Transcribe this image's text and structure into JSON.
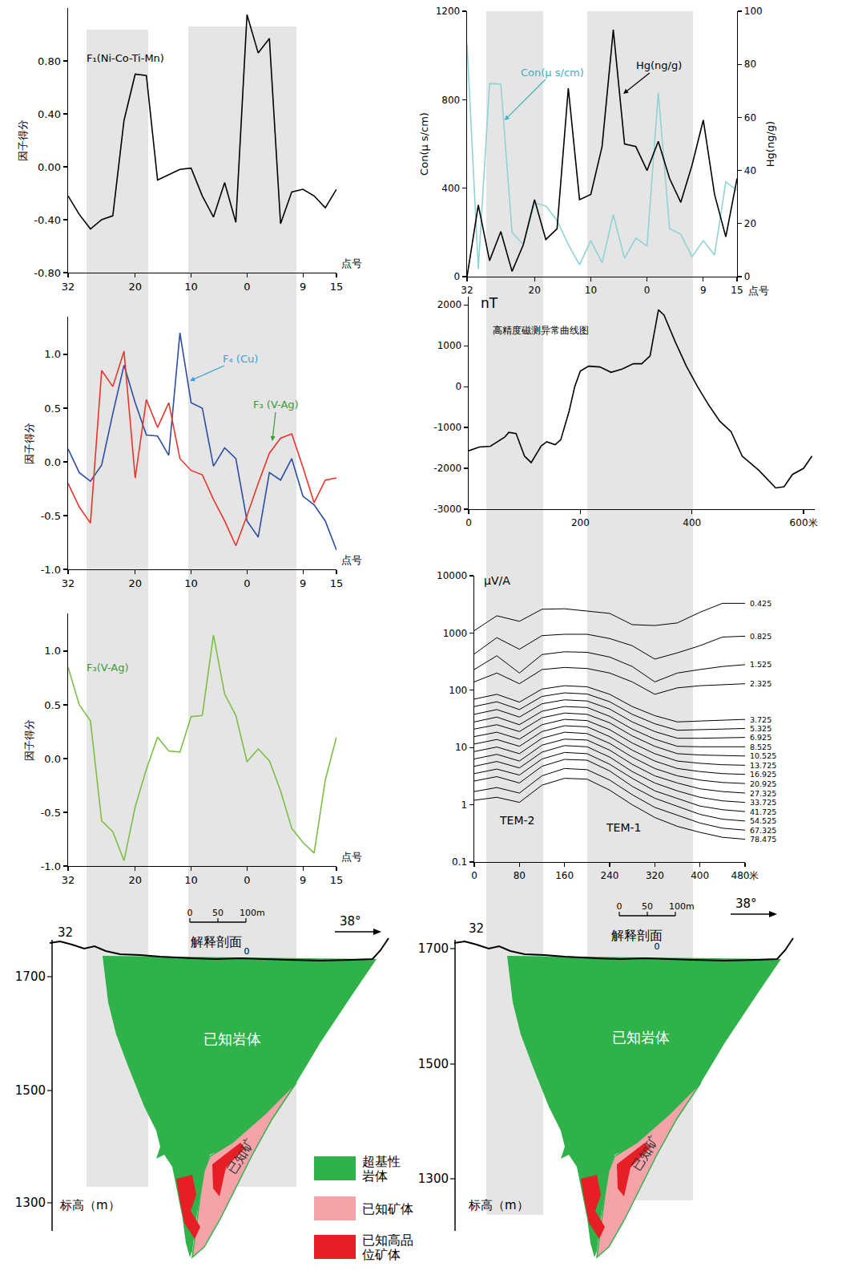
{
  "chart_data": [
    {
      "type": "line",
      "y_title": "因子得分",
      "x_title": "点号",
      "grid": false,
      "categories": [
        "32",
        null,
        null,
        null,
        null,
        null,
        "20",
        null,
        null,
        null,
        null,
        "10",
        null,
        null,
        null,
        null,
        "0",
        null,
        null,
        null,
        null,
        "9",
        null,
        null,
        "15"
      ],
      "ylim": [
        -0.8,
        1.2
      ],
      "yticks": [
        {
          "value": -0.8,
          "label": "-0.80"
        },
        {
          "value": -0.4,
          "label": "-0.40"
        },
        {
          "value": 0,
          "label": "0.00"
        },
        {
          "value": 0.4,
          "label": "0.40"
        },
        {
          "value": 0.8,
          "label": "0.80"
        }
      ],
      "series": [
        {
          "name": "F₁(Ni-Co-Ti-Mn)",
          "color": "#000000",
          "values": [
            -0.22,
            -0.36,
            -0.47,
            -0.4,
            -0.37,
            0.35,
            0.7,
            0.69,
            -0.1,
            -0.06,
            -0.02,
            -0.01,
            -0.22,
            -0.38,
            -0.12,
            -0.42,
            1.15,
            0.86,
            0.97,
            -0.43,
            -0.19,
            -0.17,
            -0.22,
            -0.31,
            -0.17
          ]
        }
      ]
    },
    {
      "type": "line",
      "y_title": "因子得分",
      "x_title": "点号",
      "grid": false,
      "categories": [
        "32",
        null,
        null,
        null,
        null,
        null,
        "20",
        null,
        null,
        null,
        null,
        "10",
        null,
        null,
        null,
        null,
        "0",
        null,
        null,
        null,
        null,
        "9",
        null,
        null,
        "15"
      ],
      "ylim": [
        -1.0,
        1.35
      ],
      "yticks": [
        {
          "value": -1,
          "label": "-1.0"
        },
        {
          "value": -0.5,
          "label": "-0.5"
        },
        {
          "value": 0,
          "label": "0.0"
        },
        {
          "value": 0.5,
          "label": "0.5"
        },
        {
          "value": 1,
          "label": "1.0"
        }
      ],
      "series": [
        {
          "name": "F₄ (Cu)",
          "color": "#2b4ea2",
          "values": [
            0.12,
            -0.1,
            -0.18,
            -0.03,
            0.45,
            0.9,
            0.55,
            0.25,
            0.24,
            0.06,
            1.2,
            0.55,
            0.5,
            -0.04,
            0.13,
            0.03,
            -0.55,
            -0.7,
            -0.1,
            -0.17,
            0.03,
            -0.32,
            -0.4,
            -0.55,
            -0.82
          ]
        },
        {
          "name": "F₃ (V-Ag)",
          "color": "#e8352b",
          "values": [
            -0.2,
            -0.42,
            -0.57,
            0.85,
            0.7,
            1.03,
            -0.15,
            0.58,
            0.32,
            0.55,
            0.03,
            -0.08,
            -0.12,
            -0.35,
            -0.55,
            -0.78,
            -0.5,
            -0.2,
            0.08,
            0.22,
            0.26,
            -0.05,
            -0.38,
            -0.17,
            -0.15
          ]
        }
      ]
    },
    {
      "type": "line",
      "y_title": "因子得分",
      "x_title": "点号",
      "grid": false,
      "categories": [
        "32",
        null,
        null,
        null,
        null,
        null,
        "20",
        null,
        null,
        null,
        null,
        "10",
        null,
        null,
        null,
        null,
        "0",
        null,
        null,
        null,
        null,
        "9",
        null,
        null,
        "15"
      ],
      "ylim": [
        -1.0,
        1.35
      ],
      "yticks": [
        {
          "value": -1,
          "label": "-1.0"
        },
        {
          "value": -0.5,
          "label": "-0.5"
        },
        {
          "value": 0,
          "label": "0.0"
        },
        {
          "value": 0.5,
          "label": "0.5"
        },
        {
          "value": 1,
          "label": "1.0"
        }
      ],
      "series": [
        {
          "name": "F₃(V-Ag)",
          "color": "#7cbf45",
          "values": [
            0.85,
            0.5,
            0.35,
            -0.58,
            -0.68,
            -0.95,
            -0.45,
            -0.1,
            0.2,
            0.07,
            0.06,
            0.39,
            0.4,
            1.15,
            0.6,
            0.4,
            -0.03,
            0.09,
            -0.02,
            -0.3,
            -0.65,
            -0.78,
            -0.88,
            -0.2,
            0.2
          ]
        }
      ]
    },
    {
      "type": "line",
      "y_title": "Con(μ s/cm)",
      "y2_title": "Hg(ng/g)",
      "x_title": "点号",
      "grid": false,
      "categories": [
        "32",
        null,
        null,
        null,
        null,
        null,
        "20",
        null,
        null,
        null,
        null,
        "10",
        null,
        null,
        null,
        null,
        "0",
        null,
        null,
        null,
        null,
        "9",
        null,
        null,
        "15"
      ],
      "ylim": [
        0,
        1200
      ],
      "yticks": [
        0,
        400,
        800,
        1200
      ],
      "y2lim": [
        0,
        100
      ],
      "y2ticks": [
        0,
        20,
        40,
        60,
        80,
        100
      ],
      "series": [
        {
          "name": "Con(μ s/cm)",
          "color": "#8fd3d6",
          "values": [
            1050,
            35,
            873,
            870,
            200,
            145,
            333,
            320,
            254,
            145,
            54,
            163,
            62,
            280,
            83,
            174,
            138,
            833,
            217,
            192,
            90,
            163,
            98,
            428,
            391
          ]
        },
        {
          "name": "Hg(ng/g)",
          "color": "#000000",
          "axis": "y2",
          "values": [
            0,
            27,
            6,
            17,
            2,
            12,
            29,
            14,
            18,
            71,
            29,
            31,
            49,
            93,
            50,
            49,
            40,
            51,
            37,
            28,
            42,
            59,
            31,
            15,
            37
          ]
        }
      ]
    },
    {
      "type": "line",
      "title": "高精度磁测异常曲线图",
      "y_title": "nT",
      "grid": false,
      "x": [
        0,
        19,
        39,
        65,
        72,
        85,
        100,
        112,
        130,
        140,
        155,
        165,
        180,
        190,
        200,
        215,
        235,
        255,
        275,
        295,
        310,
        325,
        340,
        350,
        370,
        390,
        410,
        430,
        450,
        470,
        490,
        520,
        550,
        565,
        580,
        600,
        615
      ],
      "xlim": [
        0,
        620
      ],
      "xticks": [
        0,
        200,
        400,
        {
          "value": 600,
          "label": "600米"
        }
      ],
      "ylim": [
        -3000,
        2200
      ],
      "yticks": [
        -3000,
        -2000,
        -1000,
        0,
        1000,
        2000
      ],
      "series": [
        {
          "color": "#000000",
          "values": [
            -1570,
            -1480,
            -1460,
            -1230,
            -1120,
            -1150,
            -1700,
            -1860,
            -1450,
            -1350,
            -1420,
            -1300,
            -600,
            0,
            380,
            500,
            480,
            350,
            430,
            560,
            560,
            750,
            1880,
            1750,
            1100,
            500,
            0,
            -450,
            -850,
            -1100,
            -1700,
            -2050,
            -2480,
            -2450,
            -2150,
            -2000,
            -1700
          ]
        }
      ]
    },
    {
      "type": "line",
      "y_title": "μV/A",
      "log": "y",
      "grid": false,
      "annotations": [
        "TEM-2",
        "TEM-1"
      ],
      "x": [
        0,
        40,
        80,
        120,
        160,
        200,
        240,
        280,
        320,
        360,
        400,
        440,
        480
      ],
      "xlim": [
        0,
        480
      ],
      "xticks": [
        0,
        80,
        160,
        240,
        320,
        400,
        {
          "value": 480,
          "label": "480米"
        }
      ],
      "ylim": [
        0.1,
        10000
      ],
      "yticks": [
        0.1,
        1,
        10,
        100,
        1000,
        10000
      ],
      "series": [
        {
          "name": "0.425",
          "color": "#000000",
          "values": [
            1100,
            2000,
            1600,
            2600,
            2650,
            2400,
            2200,
            1400,
            1350,
            1500,
            2300,
            3300,
            3300
          ]
        },
        {
          "name": "0.825",
          "color": "#000000",
          "values": [
            430,
            830,
            520,
            900,
            950,
            950,
            800,
            600,
            350,
            450,
            600,
            850,
            880
          ]
        },
        {
          "name": "1.525",
          "color": "#000000",
          "values": [
            230,
            400,
            200,
            420,
            470,
            460,
            380,
            260,
            140,
            200,
            230,
            260,
            280
          ]
        },
        {
          "name": "2.325",
          "color": "#000000",
          "values": [
            140,
            200,
            130,
            230,
            250,
            240,
            200,
            140,
            85,
            110,
            120,
            125,
            130
          ]
        },
        {
          "name": "3.725",
          "color": "#000000",
          "values": [
            70,
            85,
            62,
            105,
            120,
            115,
            85,
            52,
            36,
            28,
            29,
            30,
            31
          ]
        },
        {
          "name": "5.325",
          "color": "#000000",
          "values": [
            52,
            63,
            46,
            78,
            90,
            86,
            63,
            38,
            26,
            20,
            20.5,
            21,
            21.5
          ]
        },
        {
          "name": "6.925",
          "color": "#000000",
          "values": [
            38,
            46,
            34,
            58,
            68,
            65,
            47,
            28,
            19,
            14.5,
            14.5,
            14.8,
            15
          ]
        },
        {
          "name": "8.525",
          "color": "#000000",
          "values": [
            28,
            34,
            25,
            43,
            52,
            50,
            35,
            21,
            14,
            10.5,
            10.3,
            10.3,
            10.3
          ]
        },
        {
          "name": "10.525",
          "color": "#000000",
          "values": [
            21,
            25,
            19,
            33,
            40,
            38,
            27,
            16,
            10.5,
            7.8,
            7.4,
            7.2,
            7.1
          ]
        },
        {
          "name": "13.725",
          "color": "#000000",
          "values": [
            15.5,
            18.5,
            14,
            25,
            31,
            29.5,
            20.5,
            12,
            7.8,
            5.8,
            5.3,
            5,
            4.9
          ]
        },
        {
          "name": "16.925",
          "color": "#000000",
          "values": [
            11.5,
            13.8,
            10.5,
            19,
            24,
            23,
            15.5,
            9,
            5.8,
            4.3,
            3.8,
            3.5,
            3.4
          ]
        },
        {
          "name": "20.925",
          "color": "#000000",
          "values": [
            8.5,
            10.2,
            7.8,
            14.5,
            18.5,
            17.5,
            11.8,
            6.8,
            4.3,
            3.2,
            2.7,
            2.45,
            2.35
          ]
        },
        {
          "name": "27.325",
          "color": "#000000",
          "values": [
            6.3,
            7.6,
            5.8,
            11,
            14,
            13.5,
            9,
            5.1,
            3.2,
            2.4,
            1.9,
            1.7,
            1.6
          ]
        },
        {
          "name": "33.725",
          "color": "#000000",
          "values": [
            4.7,
            5.7,
            4.4,
            8.3,
            10.8,
            10.3,
            6.8,
            3.8,
            2.4,
            1.75,
            1.35,
            1.17,
            1.1
          ]
        },
        {
          "name": "41.725",
          "color": "#000000",
          "values": [
            3.5,
            4.2,
            3.3,
            6.3,
            8.2,
            7.8,
            5.1,
            2.9,
            1.75,
            1.3,
            0.95,
            0.82,
            0.76
          ]
        },
        {
          "name": "54.525",
          "color": "#000000",
          "values": [
            2.6,
            3.1,
            2.4,
            4.7,
            6.2,
            6,
            3.9,
            2.1,
            1.3,
            0.95,
            0.68,
            0.56,
            0.52
          ]
        },
        {
          "name": "67.325",
          "color": "#000000",
          "values": [
            1.7,
            2,
            1.6,
            3.2,
            4.3,
            4.1,
            2.7,
            1.5,
            0.9,
            0.65,
            0.48,
            0.39,
            0.36
          ]
        },
        {
          "name": "78.475",
          "color": "#000000",
          "values": [
            1.2,
            1.35,
            1.1,
            2.2,
            2.9,
            2.8,
            1.8,
            1,
            0.6,
            0.42,
            0.33,
            0.27,
            0.25
          ]
        }
      ]
    }
  ],
  "sections": {
    "key": [
      {
        "label": "超基性\n岩体",
        "color": "#2fb24a"
      },
      {
        "label": "已知矿体",
        "color": "#f4a3a8"
      },
      {
        "label": "已知高品\n位矿体",
        "color": "#e61e25"
      }
    ],
    "profiles": [
      {
        "start_label": "32",
        "center_label": "0",
        "title": "解释剖面",
        "direction": "38°",
        "scale_labels": [
          "0",
          "50",
          "100m"
        ],
        "elevations": [
          1700,
          1500,
          1300
        ],
        "elevation_title": "标高（m）",
        "body_label": "已知岩体",
        "ore_label": "已知矿"
      },
      {
        "start_label": "32",
        "center_label": "0",
        "title": "解释剖面",
        "direction": "38°",
        "scale_labels": [
          "0",
          "50",
          "100m"
        ],
        "elevations": [
          1700,
          1500,
          1300
        ],
        "elevation_title": "标高（m）",
        "body_label": "已知岩体",
        "ore_label": "已知矿"
      }
    ]
  }
}
